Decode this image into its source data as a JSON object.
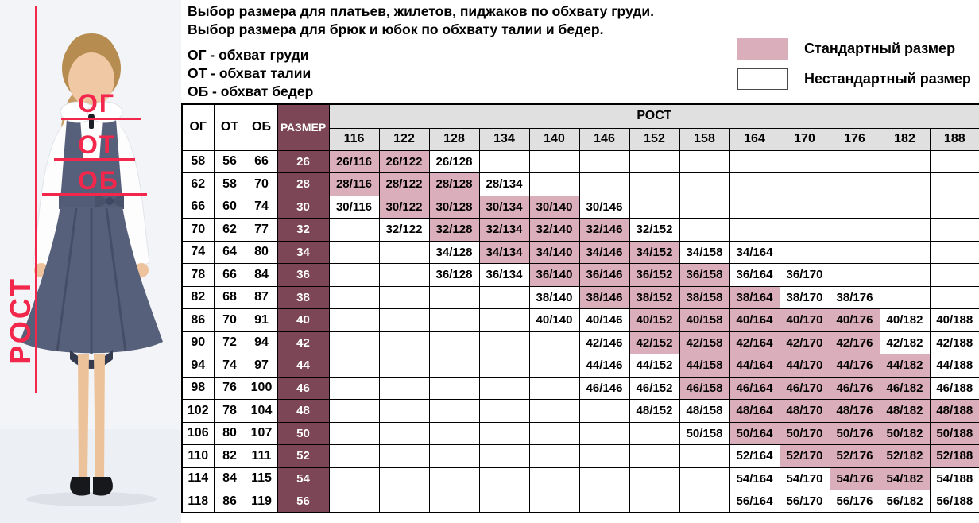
{
  "header": {
    "line1": "Выбор размера для платьев, жилетов, пиджаков по обхвату груди.",
    "line2": "Выбор размера для брюк и юбок по обхвату талии и бедер.",
    "abbreviations": [
      "ОГ - обхват груди",
      "ОТ - обхват талии",
      "ОБ - обхват бедер"
    ]
  },
  "legend": {
    "standard_label": "Стандартный размер",
    "nonstandard_label": "Нестандартный размер",
    "standard_color": "#dbaebb",
    "nonstandard_color": "#ffffff"
  },
  "photo": {
    "chest_label": "ОГ",
    "waist_label": "ОТ",
    "hips_label": "ОБ",
    "height_label": "РОСТ",
    "accent_color": "#f2274b"
  },
  "colors": {
    "size_column": "#7c4656",
    "standard_cell": "#dbaebb",
    "header_band": "#e0e0e0"
  },
  "chart_data": {
    "type": "table",
    "columns": [
      "ОГ",
      "ОТ",
      "ОБ",
      "РАЗМЕР"
    ],
    "height_band_label": "РОСТ",
    "heights": [
      116,
      122,
      128,
      134,
      140,
      146,
      152,
      158,
      164,
      170,
      176,
      182,
      188
    ],
    "rows": [
      {
        "og": 58,
        "ot": 56,
        "ob": 66,
        "size": 26,
        "cells": [
          {
            "label": "26/116",
            "std": true
          },
          {
            "label": "26/122",
            "std": true
          },
          {
            "label": "26/128",
            "std": false
          },
          null,
          null,
          null,
          null,
          null,
          null,
          null,
          null,
          null,
          null
        ]
      },
      {
        "og": 62,
        "ot": 58,
        "ob": 70,
        "size": 28,
        "cells": [
          {
            "label": "28/116",
            "std": true
          },
          {
            "label": "28/122",
            "std": true
          },
          {
            "label": "28/128",
            "std": true
          },
          {
            "label": "28/134",
            "std": false
          },
          null,
          null,
          null,
          null,
          null,
          null,
          null,
          null,
          null
        ]
      },
      {
        "og": 66,
        "ot": 60,
        "ob": 74,
        "size": 30,
        "cells": [
          {
            "label": "30/116",
            "std": false
          },
          {
            "label": "30/122",
            "std": true
          },
          {
            "label": "30/128",
            "std": true
          },
          {
            "label": "30/134",
            "std": true
          },
          {
            "label": "30/140",
            "std": true
          },
          {
            "label": "30/146",
            "std": false
          },
          null,
          null,
          null,
          null,
          null,
          null,
          null
        ]
      },
      {
        "og": 70,
        "ot": 62,
        "ob": 77,
        "size": 32,
        "cells": [
          null,
          {
            "label": "32/122",
            "std": false
          },
          {
            "label": "32/128",
            "std": true
          },
          {
            "label": "32/134",
            "std": true
          },
          {
            "label": "32/140",
            "std": true
          },
          {
            "label": "32/146",
            "std": true
          },
          {
            "label": "32/152",
            "std": false
          },
          null,
          null,
          null,
          null,
          null,
          null
        ]
      },
      {
        "og": 74,
        "ot": 64,
        "ob": 80,
        "size": 34,
        "cells": [
          null,
          null,
          {
            "label": "34/128",
            "std": false
          },
          {
            "label": "34/134",
            "std": true
          },
          {
            "label": "34/140",
            "std": true
          },
          {
            "label": "34/146",
            "std": true
          },
          {
            "label": "34/152",
            "std": true
          },
          {
            "label": "34/158",
            "std": false
          },
          {
            "label": "34/164",
            "std": false
          },
          null,
          null,
          null,
          null
        ]
      },
      {
        "og": 78,
        "ot": 66,
        "ob": 84,
        "size": 36,
        "cells": [
          null,
          null,
          {
            "label": "36/128",
            "std": false
          },
          {
            "label": "36/134",
            "std": false
          },
          {
            "label": "36/140",
            "std": true
          },
          {
            "label": "36/146",
            "std": true
          },
          {
            "label": "36/152",
            "std": true
          },
          {
            "label": "36/158",
            "std": true
          },
          {
            "label": "36/164",
            "std": false
          },
          {
            "label": "36/170",
            "std": false
          },
          null,
          null,
          null
        ]
      },
      {
        "og": 82,
        "ot": 68,
        "ob": 87,
        "size": 38,
        "cells": [
          null,
          null,
          null,
          null,
          {
            "label": "38/140",
            "std": false
          },
          {
            "label": "38/146",
            "std": true
          },
          {
            "label": "38/152",
            "std": true
          },
          {
            "label": "38/158",
            "std": true
          },
          {
            "label": "38/164",
            "std": true
          },
          {
            "label": "38/170",
            "std": false
          },
          {
            "label": "38/176",
            "std": false
          },
          null,
          null
        ]
      },
      {
        "og": 86,
        "ot": 70,
        "ob": 91,
        "size": 40,
        "cells": [
          null,
          null,
          null,
          null,
          {
            "label": "40/140",
            "std": false
          },
          {
            "label": "40/146",
            "std": false
          },
          {
            "label": "40/152",
            "std": true
          },
          {
            "label": "40/158",
            "std": true
          },
          {
            "label": "40/164",
            "std": true
          },
          {
            "label": "40/170",
            "std": true
          },
          {
            "label": "40/176",
            "std": true
          },
          {
            "label": "40/182",
            "std": false
          },
          {
            "label": "40/188",
            "std": false
          }
        ]
      },
      {
        "og": 90,
        "ot": 72,
        "ob": 94,
        "size": 42,
        "cells": [
          null,
          null,
          null,
          null,
          null,
          {
            "label": "42/146",
            "std": false
          },
          {
            "label": "42/152",
            "std": true
          },
          {
            "label": "42/158",
            "std": true
          },
          {
            "label": "42/164",
            "std": true
          },
          {
            "label": "42/170",
            "std": true
          },
          {
            "label": "42/176",
            "std": true
          },
          {
            "label": "42/182",
            "std": false
          },
          {
            "label": "42/188",
            "std": false
          }
        ]
      },
      {
        "og": 94,
        "ot": 74,
        "ob": 97,
        "size": 44,
        "cells": [
          null,
          null,
          null,
          null,
          null,
          {
            "label": "44/146",
            "std": false
          },
          {
            "label": "44/152",
            "std": false
          },
          {
            "label": "44/158",
            "std": true
          },
          {
            "label": "44/164",
            "std": true
          },
          {
            "label": "44/170",
            "std": true
          },
          {
            "label": "44/176",
            "std": true
          },
          {
            "label": "44/182",
            "std": true
          },
          {
            "label": "44/188",
            "std": false
          }
        ]
      },
      {
        "og": 98,
        "ot": 76,
        "ob": 100,
        "size": 46,
        "cells": [
          null,
          null,
          null,
          null,
          null,
          {
            "label": "46/146",
            "std": false
          },
          {
            "label": "46/152",
            "std": false
          },
          {
            "label": "46/158",
            "std": true
          },
          {
            "label": "46/164",
            "std": true
          },
          {
            "label": "46/170",
            "std": true
          },
          {
            "label": "46/176",
            "std": true
          },
          {
            "label": "46/182",
            "std": true
          },
          {
            "label": "46/188",
            "std": false
          }
        ]
      },
      {
        "og": 102,
        "ot": 78,
        "ob": 104,
        "size": 48,
        "cells": [
          null,
          null,
          null,
          null,
          null,
          null,
          {
            "label": "48/152",
            "std": false
          },
          {
            "label": "48/158",
            "std": false
          },
          {
            "label": "48/164",
            "std": true
          },
          {
            "label": "48/170",
            "std": true
          },
          {
            "label": "48/176",
            "std": true
          },
          {
            "label": "48/182",
            "std": true
          },
          {
            "label": "48/188",
            "std": true
          }
        ]
      },
      {
        "og": 106,
        "ot": 80,
        "ob": 107,
        "size": 50,
        "cells": [
          null,
          null,
          null,
          null,
          null,
          null,
          null,
          {
            "label": "50/158",
            "std": false
          },
          {
            "label": "50/164",
            "std": true
          },
          {
            "label": "50/170",
            "std": true
          },
          {
            "label": "50/176",
            "std": true
          },
          {
            "label": "50/182",
            "std": true
          },
          {
            "label": "50/188",
            "std": true
          }
        ]
      },
      {
        "og": 110,
        "ot": 82,
        "ob": 111,
        "size": 52,
        "cells": [
          null,
          null,
          null,
          null,
          null,
          null,
          null,
          null,
          {
            "label": "52/164",
            "std": false
          },
          {
            "label": "52/170",
            "std": true
          },
          {
            "label": "52/176",
            "std": true
          },
          {
            "label": "52/182",
            "std": true
          },
          {
            "label": "52/188",
            "std": true
          }
        ]
      },
      {
        "og": 114,
        "ot": 84,
        "ob": 115,
        "size": 54,
        "cells": [
          null,
          null,
          null,
          null,
          null,
          null,
          null,
          null,
          {
            "label": "54/164",
            "std": false
          },
          {
            "label": "54/170",
            "std": false
          },
          {
            "label": "54/176",
            "std": true
          },
          {
            "label": "54/182",
            "std": true
          },
          {
            "label": "54/188",
            "std": false
          }
        ]
      },
      {
        "og": 118,
        "ot": 86,
        "ob": 119,
        "size": 56,
        "cells": [
          null,
          null,
          null,
          null,
          null,
          null,
          null,
          null,
          {
            "label": "56/164",
            "std": false
          },
          {
            "label": "56/170",
            "std": false
          },
          {
            "label": "56/176",
            "std": false
          },
          {
            "label": "56/182",
            "std": false
          },
          {
            "label": "56/188",
            "std": false
          }
        ]
      }
    ]
  }
}
